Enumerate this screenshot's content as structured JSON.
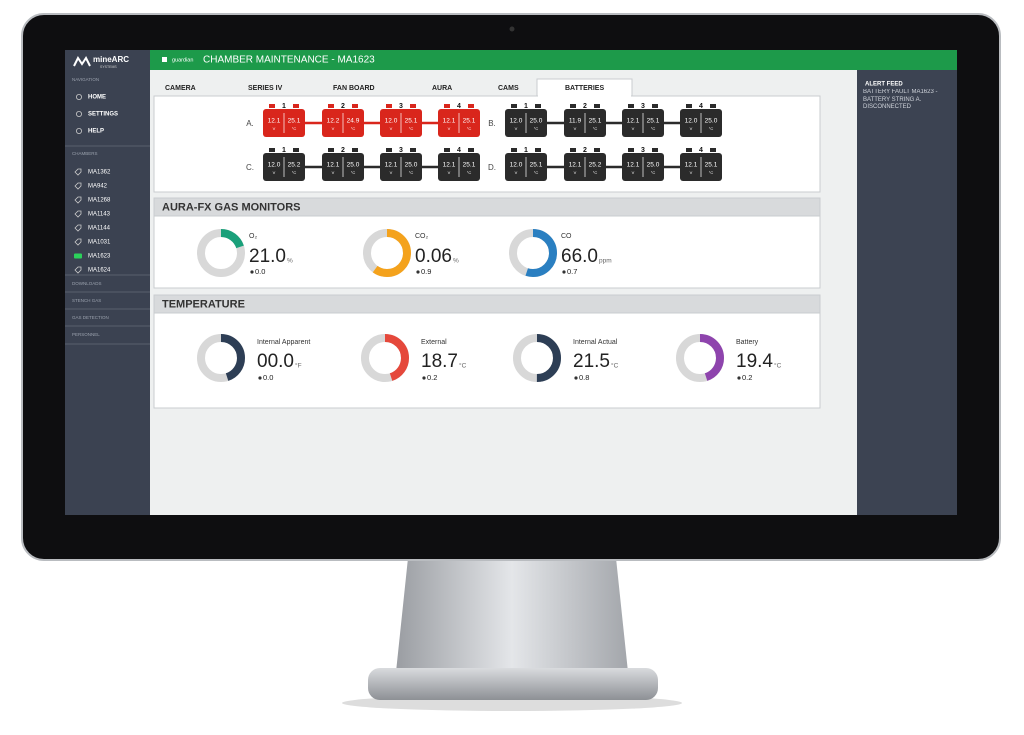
{
  "sidebar": {
    "brand": "mineARC",
    "brand_sub": "SYSTEMS",
    "nav_heading": "NAVIGATION",
    "nav": [
      "HOME",
      "SETTINGS",
      "HELP"
    ],
    "chambers_heading": "CHAMBERS",
    "chambers": [
      {
        "name": "MA1362",
        "active": false
      },
      {
        "name": "MA942",
        "active": false
      },
      {
        "name": "MA1268",
        "active": false
      },
      {
        "name": "MA1143",
        "active": false
      },
      {
        "name": "MA1144",
        "active": false
      },
      {
        "name": "MA1031",
        "active": false
      },
      {
        "name": "MA1623",
        "active": true
      },
      {
        "name": "MA1624",
        "active": false
      }
    ],
    "sections": [
      "DOWNLOADS",
      "STENCH GAS",
      "GAS DETECTION",
      "PERSONNEL"
    ]
  },
  "header": {
    "app": "guardian",
    "title": "CHAMBER MAINTENANCE - MA1623"
  },
  "tabs": [
    {
      "label": "CAMERA",
      "active": false
    },
    {
      "label": "SERIES IV",
      "active": false
    },
    {
      "label": "FAN BOARD",
      "active": false
    },
    {
      "label": "AURA",
      "active": false
    },
    {
      "label": "CAMS",
      "active": false
    },
    {
      "label": "BATTERIES",
      "active": true
    }
  ],
  "batteries": {
    "volt_unit": "V",
    "temp_unit": "°C",
    "strings": [
      {
        "label": "A.",
        "fault": true,
        "cells": [
          {
            "number": "1",
            "volts": "12.1",
            "temp": "25.1"
          },
          {
            "number": "2",
            "volts": "12.2",
            "temp": "24.9"
          },
          {
            "number": "3",
            "volts": "12.0",
            "temp": "25.1"
          },
          {
            "number": "4",
            "volts": "12.1",
            "temp": "25.1"
          }
        ]
      },
      {
        "label": "B.",
        "fault": false,
        "cells": [
          {
            "number": "1",
            "volts": "12.0",
            "temp": "25.0"
          },
          {
            "number": "2",
            "volts": "11.9",
            "temp": "25.1"
          },
          {
            "number": "3",
            "volts": "12.1",
            "temp": "25.1"
          },
          {
            "number": "4",
            "volts": "12.0",
            "temp": "25.0"
          }
        ]
      },
      {
        "label": "C.",
        "fault": false,
        "cells": [
          {
            "number": "1",
            "volts": "12.0",
            "temp": "25.2"
          },
          {
            "number": "2",
            "volts": "12.1",
            "temp": "25.0"
          },
          {
            "number": "3",
            "volts": "12.1",
            "temp": "25.0"
          },
          {
            "number": "4",
            "volts": "12.1",
            "temp": "25.1"
          }
        ]
      },
      {
        "label": "D.",
        "fault": false,
        "cells": [
          {
            "number": "1",
            "volts": "12.0",
            "temp": "25.1"
          },
          {
            "number": "2",
            "volts": "12.1",
            "temp": "25.2"
          },
          {
            "number": "3",
            "volts": "12.1",
            "temp": "25.0"
          },
          {
            "number": "4",
            "volts": "12.1",
            "temp": "25.1"
          }
        ]
      }
    ]
  },
  "gas": {
    "title": "AURA-FX GAS MONITORS",
    "monitors": [
      {
        "name": "O₂",
        "value": "21.0",
        "unit": "%",
        "change": "0.0",
        "color": "#1aa07a",
        "fill": 0.2
      },
      {
        "name": "CO₂",
        "value": "0.06",
        "unit": "%",
        "change": "0.9",
        "color": "#f4a21c",
        "fill": 0.6
      },
      {
        "name": "CO",
        "value": "66.0",
        "unit": "ppm",
        "change": "0.7",
        "color": "#2a7fc1",
        "fill": 0.55
      }
    ]
  },
  "temperature": {
    "title": "TEMPERATURE",
    "monitors": [
      {
        "name": "Internal Apparent",
        "value": "00.0",
        "unit": "°F",
        "change": "0.0",
        "color": "#2d3e55",
        "fill": 0.45
      },
      {
        "name": "External",
        "value": "18.7",
        "unit": "°C",
        "change": "0.2",
        "color": "#e5483b",
        "fill": 0.45
      },
      {
        "name": "Internal Actual",
        "value": "21.5",
        "unit": "°C",
        "change": "0.8",
        "color": "#2d3e55",
        "fill": 0.5
      },
      {
        "name": "Battery",
        "value": "19.4",
        "unit": "°C",
        "change": "0.2",
        "color": "#8e44ad",
        "fill": 0.45
      }
    ]
  },
  "alerts": {
    "title": "ALERT FEED",
    "items": [
      "BATTERY FAULT MA1623 - BATTERY STRING A. DISCONNECTED"
    ]
  }
}
